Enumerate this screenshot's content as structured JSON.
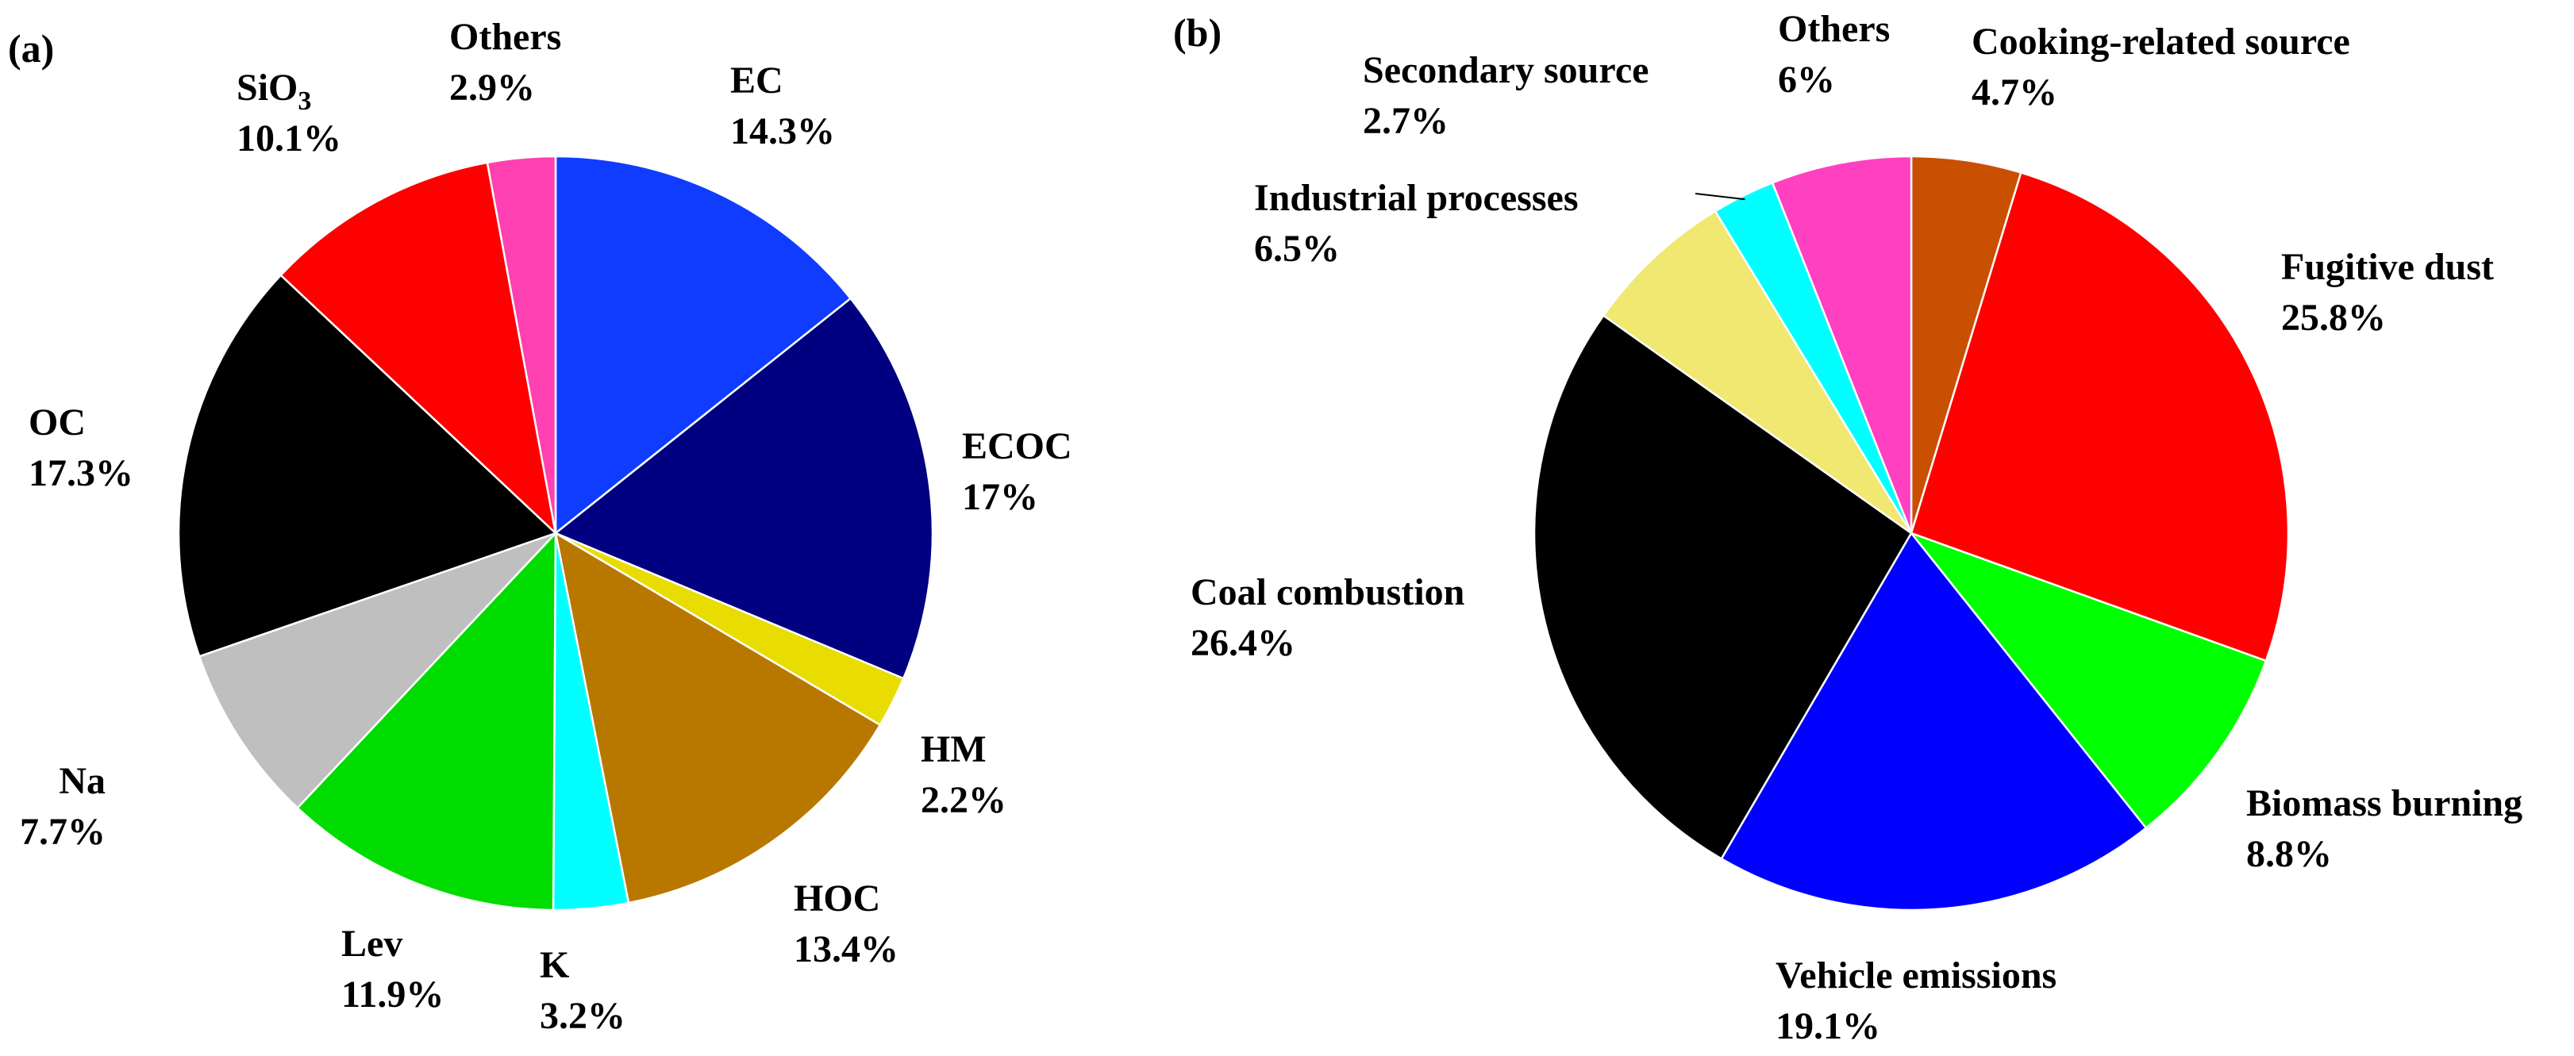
{
  "chart_data": [
    {
      "type": "pie",
      "panel_label": "(a)",
      "start_angle_deg": 90,
      "direction": "clockwise",
      "slices": [
        {
          "label": "EC",
          "value": 14.3,
          "value_label": "14.3%",
          "color": "#0F3CFF"
        },
        {
          "label": "ECOC",
          "value": 17.0,
          "value_label": "17%",
          "color": "#000080"
        },
        {
          "label": "HM",
          "value": 2.2,
          "value_label": "2.2%",
          "color": "#E8DC00"
        },
        {
          "label": "HOC",
          "value": 13.4,
          "value_label": "13.4%",
          "color": "#B87800"
        },
        {
          "label": "K",
          "value": 3.2,
          "value_label": "3.2%",
          "color": "#00FFFF"
        },
        {
          "label": "Lev",
          "value": 11.9,
          "value_label": "11.9%",
          "color": "#00DC00"
        },
        {
          "label": "Na",
          "value": 7.7,
          "value_label": "7.7%",
          "color": "#BFBFBF"
        },
        {
          "label": "OC",
          "value": 17.3,
          "value_label": "17.3%",
          "color": "#000000"
        },
        {
          "label": "SiO",
          "label_subscript": "3",
          "value": 10.1,
          "value_label": "10.1%",
          "color": "#FF0000"
        },
        {
          "label": "Others",
          "value": 2.9,
          "value_label": "2.9%",
          "color": "#FF40B0"
        }
      ]
    },
    {
      "type": "pie",
      "panel_label": "(b)",
      "start_angle_deg": 90,
      "direction": "clockwise",
      "slices": [
        {
          "label": "Cooking-related source",
          "value": 4.7,
          "value_label": "4.7%",
          "color": "#C85000"
        },
        {
          "label": "Fugitive dust",
          "value": 25.8,
          "value_label": "25.8%",
          "color": "#FF0000"
        },
        {
          "label": "Biomass burning",
          "value": 8.8,
          "value_label": "8.8%",
          "color": "#00FF00"
        },
        {
          "label": "Vehicle emissions",
          "value": 19.1,
          "value_label": "19.1%",
          "color": "#0000FF"
        },
        {
          "label": "Coal combustion",
          "value": 26.4,
          "value_label": "26.4%",
          "color": "#000000"
        },
        {
          "label": "Industrial processes",
          "value": 6.5,
          "value_label": "6.5%",
          "color": "#F0E870"
        },
        {
          "label": "Secondary source",
          "value": 2.7,
          "value_label": "2.7%",
          "color": "#00FFFF"
        },
        {
          "label": "Others",
          "value": 6.0,
          "value_label": "6%",
          "color": "#FF40C0"
        }
      ]
    }
  ]
}
